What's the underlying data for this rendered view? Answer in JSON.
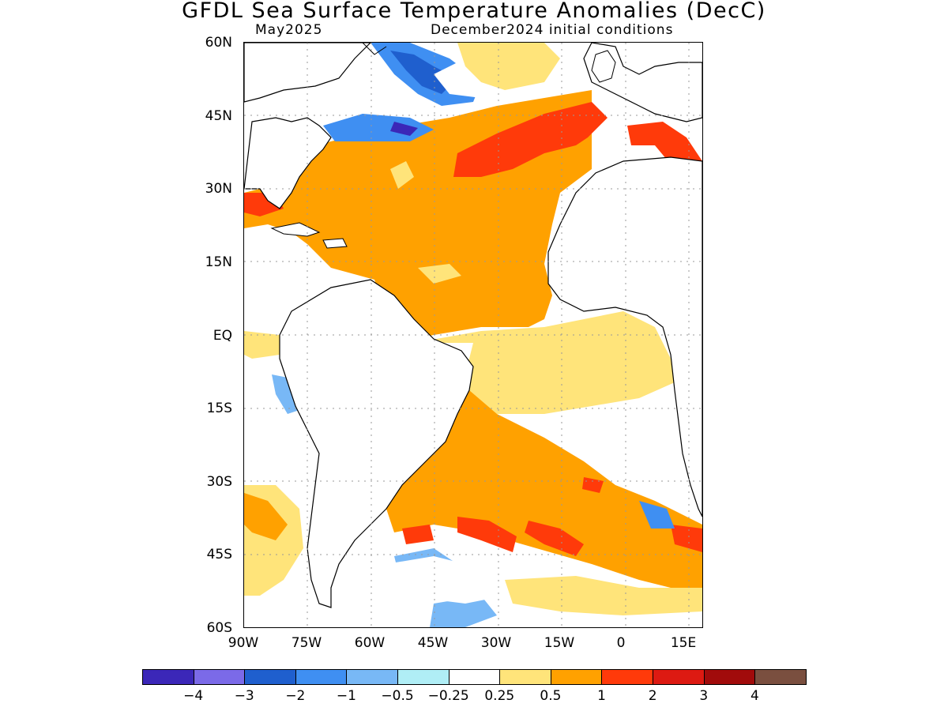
{
  "title": "GFDL Sea Surface Temperature Anomalies (DecC)",
  "subtitle_left": "May2025",
  "subtitle_right": "December2024 initial conditions",
  "map": {
    "lon_range": [
      -90,
      18
    ],
    "lat_range": [
      -60,
      60
    ],
    "lat_labels": [
      "60N",
      "45N",
      "30N",
      "15N",
      "EQ",
      "15S",
      "30S",
      "45S",
      "60S"
    ],
    "lon_labels": [
      "90W",
      "75W",
      "60W",
      "45W",
      "30W",
      "15W",
      "0",
      "15E"
    ]
  },
  "colorbar": {
    "colors": [
      "#3b27b8",
      "#7b6ae8",
      "#1f5fce",
      "#3f8ff2",
      "#78b8f6",
      "#b0eef6",
      "#ffffff",
      "#ffe47a",
      "#ffa100",
      "#ff3a0a",
      "#dd1a12",
      "#a10b0b",
      "#7a4f3f"
    ],
    "labels": [
      "−4",
      "−3",
      "−2",
      "−1",
      "−0.5",
      "−0.25",
      "0.25",
      "0.5",
      "1",
      "2",
      "3",
      "4"
    ]
  }
}
